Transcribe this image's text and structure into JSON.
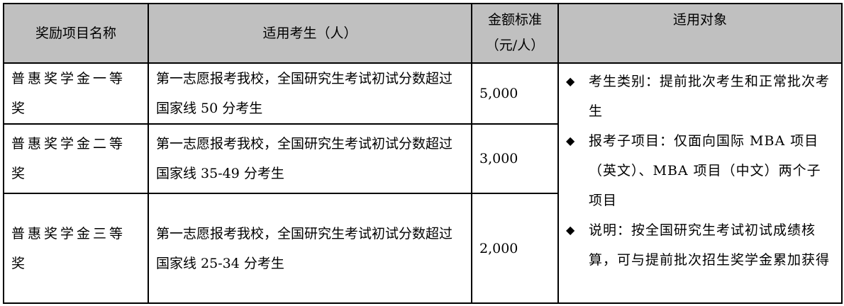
{
  "table": {
    "headers": [
      "奖励项目名称",
      "适用考生（人）",
      "金额标准（元/人）",
      "适用对象"
    ],
    "amount_header_lines": [
      "金额标准",
      "（元/人）"
    ],
    "rows": [
      {
        "name": "普惠奖学金一等奖",
        "eligible": "第一志愿报考我校，全国研究生考试初试分数超过国家线 50 分考生",
        "amount": "5,000"
      },
      {
        "name": "普惠奖学金二等奖",
        "eligible": "第一志愿报考我校，全国研究生考试初试分数超过国家线 35-49 分考生",
        "amount": "3,000"
      },
      {
        "name": "普惠奖学金三等奖",
        "eligible": "第一志愿报考我校，全国研究生考试初试分数超过国家线 25-34 分考生",
        "amount": "2,000"
      }
    ],
    "applicable": [
      "考生类别：提前批次考生和正常批次考生",
      "报考子项目：仅面向国际 MBA 项目（英文）、MBA 项目（中文）两个子项目",
      "说明：按全国研究生考试初试成绩核算，可与提前批次招生奖学金累加获得"
    ],
    "bullet_icon": "black-diamond",
    "header_bg": "#c0c0c0"
  }
}
